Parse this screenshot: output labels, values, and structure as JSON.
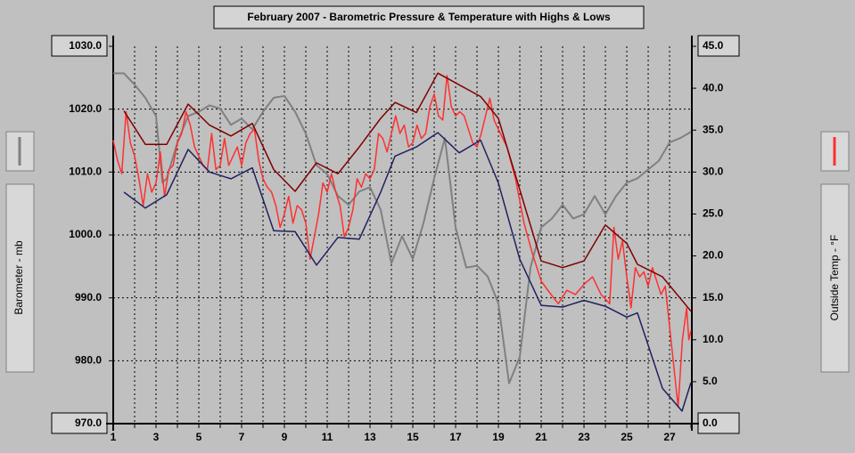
{
  "chart_data": {
    "type": "line",
    "title": "February 2007 - Barometric Pressure & Temperature with Highs & Lows",
    "xlim": [
      1,
      28.04
    ],
    "xticks": [
      1,
      3,
      5,
      7,
      9,
      11,
      13,
      15,
      17,
      19,
      21,
      23,
      25,
      27
    ],
    "xminorticks": [
      2,
      4,
      6,
      8,
      10,
      12,
      14,
      16,
      18,
      20,
      22,
      24,
      26,
      28
    ],
    "ylim": [
      970,
      1030
    ],
    "yticks": [
      {
        "value": 970,
        "label": "970.0"
      },
      {
        "value": 980,
        "label": "980.0"
      },
      {
        "value": 990,
        "label": "990.0"
      },
      {
        "value": 1000,
        "label": "1000.0"
      },
      {
        "value": 1010,
        "label": "1010.0"
      },
      {
        "value": 1020,
        "label": "1020.0"
      },
      {
        "value": 1030,
        "label": "1030.0"
      }
    ],
    "y2lim": [
      0,
      45
    ],
    "y2ticks": [
      {
        "value": 0,
        "label": "0.0"
      },
      {
        "value": 5,
        "label": "5.0"
      },
      {
        "value": 10,
        "label": "10.0"
      },
      {
        "value": 15,
        "label": "15.0"
      },
      {
        "value": 20,
        "label": "20.0"
      },
      {
        "value": 25,
        "label": "25.0"
      },
      {
        "value": 30,
        "label": "30.0"
      },
      {
        "value": 35,
        "label": "35.0"
      },
      {
        "value": 40,
        "label": "40.0"
      },
      {
        "value": 45,
        "label": "45.0"
      }
    ],
    "grid": true,
    "series": [
      {
        "name": "Barometer - mb",
        "color": "#808080",
        "x": [
          1,
          1.5,
          2,
          2.5,
          3,
          3.3,
          3.5,
          4,
          4.5,
          5,
          5.5,
          6,
          6.5,
          7,
          7.5,
          8,
          8.5,
          9,
          9.5,
          10,
          10.5,
          11,
          11.5,
          12,
          12.5,
          13,
          13.5,
          14,
          14.5,
          15,
          15.5,
          16,
          16.5,
          17,
          17.5,
          18,
          18.5,
          19,
          19.5,
          20,
          20.5,
          21,
          21.5,
          22,
          22.5,
          23,
          23.5,
          24,
          24.5,
          25,
          25.5,
          26,
          26.5,
          27,
          27.5,
          28
        ],
        "values": [
          1025.7,
          1025.7,
          1023.9,
          1021.8,
          1018.9,
          1008.3,
          1009,
          1014.7,
          1018.9,
          1019.6,
          1020.6,
          1020.1,
          1017.5,
          1018.5,
          1016.8,
          1019.6,
          1021.8,
          1022.1,
          1019.6,
          1016.1,
          1011.1,
          1009.7,
          1006.2,
          1004.8,
          1006.9,
          1007.6,
          1004,
          995.5,
          999.8,
          996.2,
          1001.9,
          1009,
          1015.4,
          1001.2,
          994.8,
          995.1,
          993.4,
          989.1,
          976.4,
          980.6,
          994.8,
          1001.2,
          1002.6,
          1004.8,
          1002.6,
          1003.3,
          1006.2,
          1003.3,
          1006.2,
          1008.3,
          1009,
          1010.4,
          1011.8,
          1014.7,
          1015.4,
          1016.4
        ]
      },
      {
        "name": "Outside Temp - °F",
        "color": "#ff3030",
        "axis": "y2",
        "x": [
          1,
          1.2,
          1.4,
          1.6,
          1.8,
          2,
          2.2,
          2.4,
          2.6,
          2.8,
          3,
          3.2,
          3.4,
          3.6,
          3.8,
          4,
          4.2,
          4.4,
          4.6,
          4.8,
          5,
          5.2,
          5.4,
          5.6,
          5.8,
          6,
          6.2,
          6.4,
          6.6,
          6.8,
          7,
          7.2,
          7.4,
          7.6,
          7.8,
          8,
          8.2,
          8.4,
          8.6,
          8.8,
          9,
          9.2,
          9.4,
          9.6,
          9.8,
          10,
          10.2,
          10.4,
          10.6,
          10.8,
          11,
          11.2,
          11.4,
          11.6,
          11.8,
          12,
          12.2,
          12.4,
          12.6,
          12.8,
          13,
          13.2,
          13.4,
          13.6,
          13.8,
          14,
          14.2,
          14.4,
          14.6,
          14.8,
          15,
          15.2,
          15.4,
          15.6,
          15.8,
          16,
          16.2,
          16.4,
          16.6,
          16.8,
          17,
          17.2,
          17.4,
          17.6,
          17.8,
          18,
          18.2,
          18.4,
          18.6,
          18.8,
          19,
          19.4,
          19.8,
          20.2,
          20.6,
          21,
          21.4,
          21.8,
          22.2,
          22.6,
          23,
          23.4,
          23.8,
          24.2,
          24.4,
          24.6,
          24.8,
          25,
          25.2,
          25.4,
          25.6,
          25.8,
          26,
          26.2,
          26.4,
          26.6,
          26.8,
          27,
          27.2,
          27.4,
          27.6,
          27.8,
          27.9,
          28
        ],
        "values": [
          33.8,
          31.4,
          29.8,
          37.2,
          33.5,
          31.9,
          29.2,
          26,
          29.8,
          27.6,
          28.7,
          32.4,
          27.1,
          30.3,
          30.8,
          33.5,
          34.6,
          37.2,
          35.6,
          33,
          31.9,
          30.8,
          30.3,
          34.6,
          30.3,
          30.8,
          34,
          30.8,
          31.9,
          33,
          30.8,
          33.5,
          34.6,
          35.1,
          31.4,
          29.2,
          28.2,
          27.6,
          26,
          23.4,
          25,
          27.1,
          23.9,
          26,
          25.5,
          23.9,
          19.6,
          22.3,
          25,
          28.7,
          27.6,
          29.8,
          27.6,
          26,
          22.3,
          23.4,
          25.5,
          29.2,
          28.2,
          29.8,
          29.2,
          30.3,
          34.6,
          34,
          32.4,
          34.6,
          36.7,
          34.6,
          35.6,
          33,
          33.5,
          35.6,
          34,
          34.6,
          37.8,
          39.3,
          36.7,
          36.2,
          41.5,
          37.8,
          36.7,
          37.2,
          36.7,
          35.1,
          33.5,
          33,
          34.6,
          36.7,
          38.8,
          36.2,
          35.1,
          33,
          29.2,
          23.9,
          20.2,
          17,
          15.6,
          14.3,
          15.9,
          15.4,
          16.6,
          17.5,
          15.4,
          14.3,
          23.4,
          19.6,
          21.8,
          17.5,
          13.8,
          18.6,
          17.5,
          18.1,
          16.4,
          18.6,
          17,
          15.4,
          16.4,
          11.6,
          6.8,
          2,
          10,
          13.8,
          10,
          11.1
        ]
      },
      {
        "color": "#800000",
        "axis": "y2",
        "x": [
          1.5,
          2.5,
          3.5,
          4.5,
          5.5,
          6.5,
          7.5,
          8.5,
          9.5,
          10.5,
          11.5,
          12.5,
          13.5,
          14.17,
          15.17,
          16.17,
          18.17,
          19,
          21,
          22,
          23,
          24,
          25,
          25.5,
          26.67,
          28
        ],
        "values": [
          37.3,
          33.3,
          33.3,
          38.1,
          35.6,
          34.3,
          35.8,
          30.3,
          27.7,
          31.1,
          29.8,
          33,
          36.4,
          38.3,
          37.1,
          41.8,
          39,
          36.4,
          19.4,
          18.6,
          19.4,
          23.7,
          21.5,
          19,
          17.5,
          13.4
        ]
      },
      {
        "color": "#202060",
        "axis": "y2",
        "x": [
          1.5,
          2.5,
          3.5,
          4.5,
          5.5,
          6.5,
          7.5,
          8.5,
          9.5,
          10.5,
          11.5,
          12.5,
          13.5,
          14.17,
          15.17,
          16.17,
          17.17,
          18.17,
          19,
          20,
          21,
          22,
          23,
          24,
          25,
          25.5,
          26.67,
          27.58,
          28
        ],
        "values": [
          27.6,
          25.7,
          27.3,
          32.7,
          30,
          29.2,
          30.5,
          23,
          22.9,
          18.9,
          22.2,
          22,
          27.6,
          31.9,
          33,
          34.7,
          32.3,
          33.8,
          28.7,
          19.6,
          14.1,
          13.9,
          14.7,
          14,
          12.7,
          13.2,
          4.2,
          1.5,
          4.9
        ]
      }
    ]
  }
}
